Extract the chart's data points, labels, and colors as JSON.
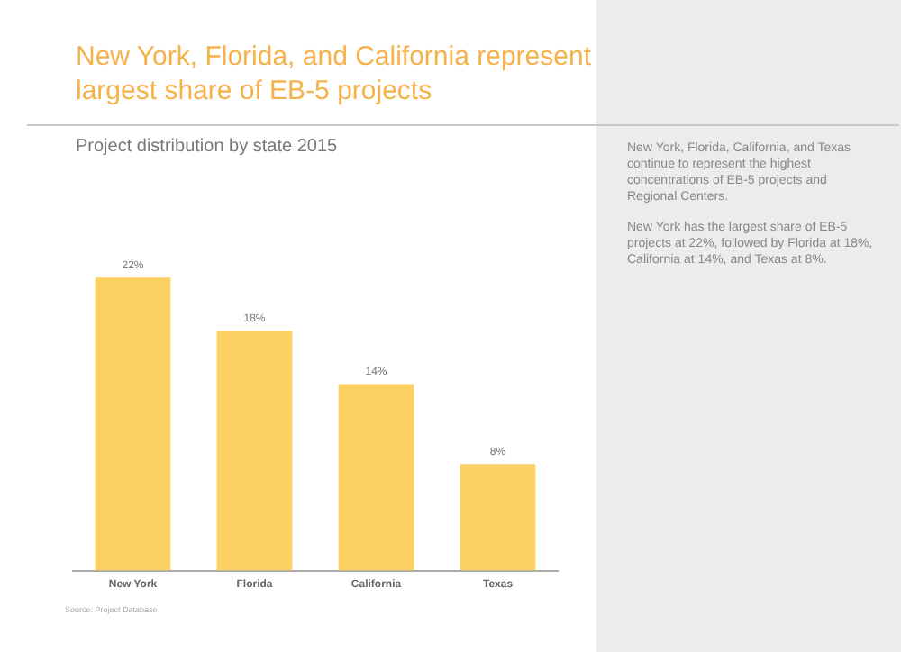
{
  "chart_data": {
    "type": "bar",
    "title": "New York, Florida, and California represent largest share of EB-5 projects",
    "subtitle": "Project distribution by state 2015",
    "categories": [
      "New York",
      "Florida",
      "California",
      "Texas"
    ],
    "values": [
      22,
      18,
      14,
      8
    ],
    "value_labels": [
      "22%",
      "18%",
      "14%",
      "8%"
    ],
    "color": "#fcd062",
    "grid": false,
    "legend": false,
    "annotations": [
      "New York, Florida, California, and Texas continue to represent the highest concentrations of EB-5 projects and Regional Centers.",
      "New York has the largest share of EB-5 projects at 22%, followed by Florida at 18%, California at 14%, and Texas at 8%.",
      "Source: Project Database"
    ]
  }
}
